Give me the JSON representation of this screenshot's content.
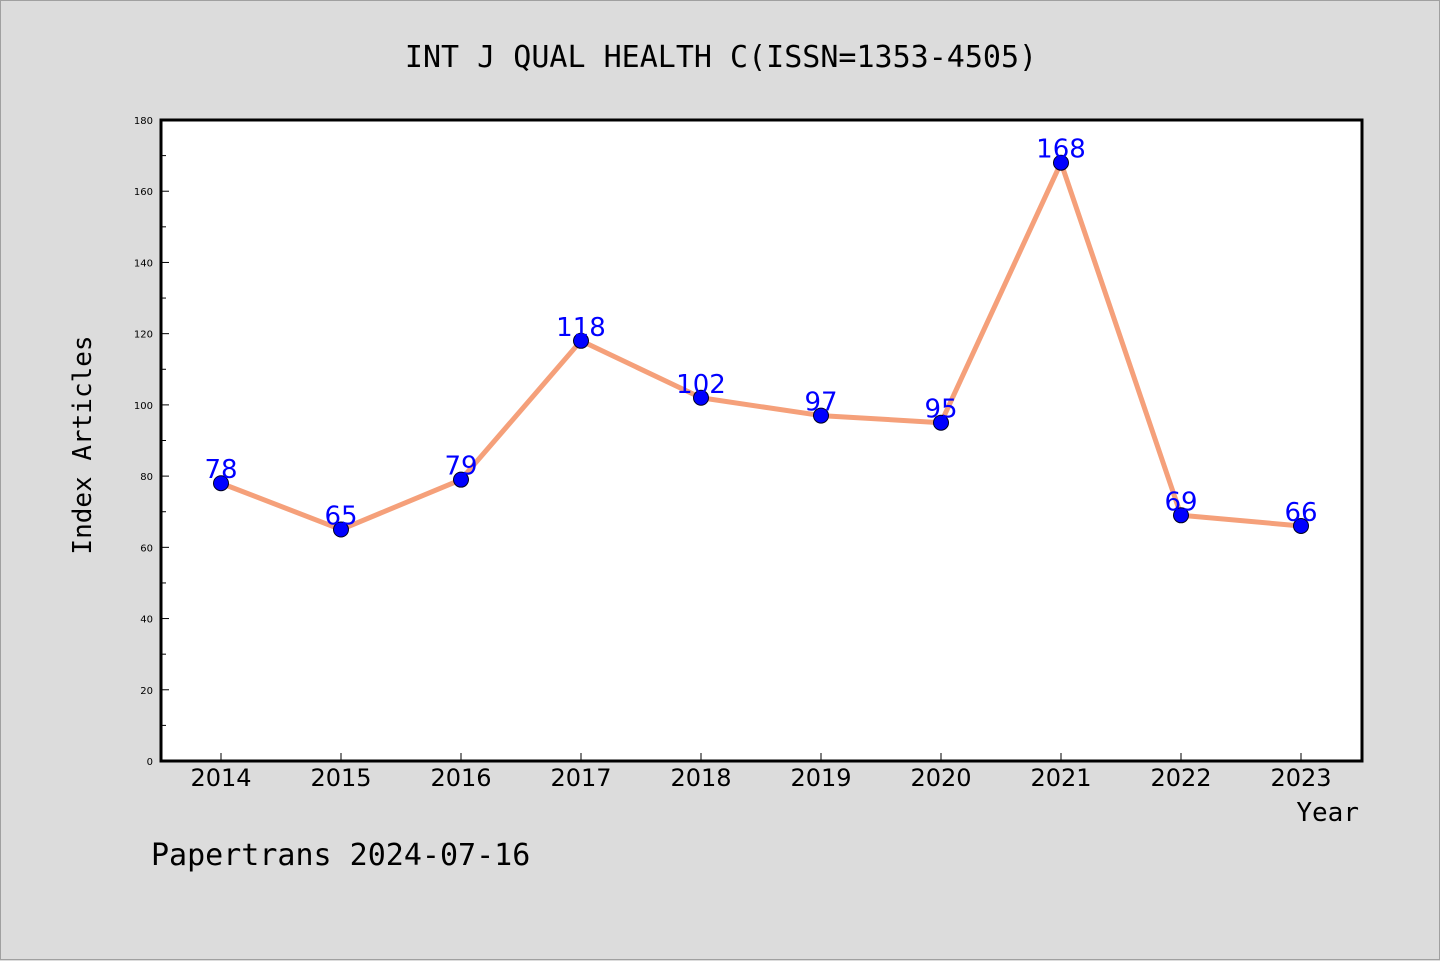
{
  "title": "INT J QUAL HEALTH C(ISSN=1353-4505)",
  "footer": "Papertrans 2024-07-16",
  "colors": {
    "background": "#dcdcdc",
    "plot_background": "#ffffff",
    "line": "#f5a07a",
    "marker": "#0000ff",
    "label": "#0000ff"
  },
  "chart_data": {
    "type": "line",
    "title": "INT J QUAL HEALTH C(ISSN=1353-4505)",
    "xlabel": "Year",
    "ylabel": "Index Articles",
    "x": [
      "2014",
      "2015",
      "2016",
      "2017",
      "2018",
      "2019",
      "2020",
      "2021",
      "2022",
      "2023"
    ],
    "series": [
      {
        "values": [
          78,
          65,
          79,
          118,
          102,
          97,
          95,
          168,
          69,
          66
        ]
      }
    ],
    "ylim": [
      0,
      180
    ],
    "y_ticks": [
      "0",
      "20",
      "40",
      "60",
      "80",
      "100",
      "120",
      "140",
      "160",
      "180"
    ],
    "grid": false,
    "legend": "none"
  }
}
